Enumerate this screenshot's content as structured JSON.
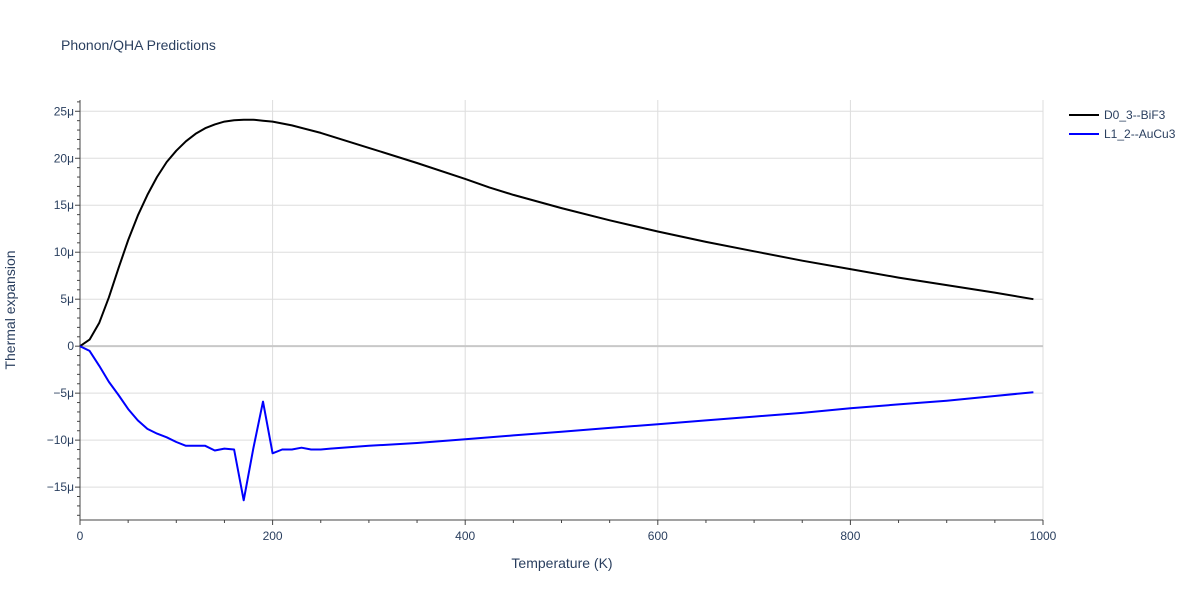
{
  "chart_data": {
    "type": "line",
    "title": "Phonon/QHA Predictions",
    "xlabel": "Temperature (K)",
    "ylabel": "Thermal expansion",
    "xlim": [
      0,
      1000
    ],
    "ylim": [
      -18.5,
      26.2
    ],
    "x_ticks": [
      0,
      200,
      400,
      600,
      800,
      1000
    ],
    "x_tick_labels": [
      "0",
      "200",
      "400",
      "600",
      "800",
      "1000"
    ],
    "y_ticks": [
      -15,
      -10,
      -5,
      0,
      5,
      10,
      15,
      20,
      25
    ],
    "y_tick_labels": [
      "−15μ",
      "−10μ",
      "−5μ",
      "0",
      "5μ",
      "10μ",
      "15μ",
      "20μ",
      "25μ"
    ],
    "y_unit_note": "values in μ (1e-6 /K)",
    "grid": true,
    "legend_position": "top-right",
    "series": [
      {
        "name": "D0_3--BiF3",
        "color": "#000000",
        "x": [
          0,
          10,
          20,
          30,
          40,
          50,
          60,
          70,
          80,
          90,
          100,
          110,
          120,
          130,
          140,
          150,
          160,
          170,
          180,
          190,
          200,
          220,
          250,
          300,
          350,
          400,
          425,
          450,
          500,
          550,
          600,
          650,
          700,
          750,
          800,
          850,
          900,
          950,
          990
        ],
        "values": [
          0,
          0.7,
          2.5,
          5.2,
          8.3,
          11.3,
          13.9,
          16.1,
          18.0,
          19.6,
          20.8,
          21.8,
          22.6,
          23.2,
          23.6,
          23.9,
          24.05,
          24.1,
          24.1,
          24.0,
          23.9,
          23.5,
          22.7,
          21.1,
          19.5,
          17.8,
          16.9,
          16.1,
          14.7,
          13.4,
          12.2,
          11.1,
          10.1,
          9.1,
          8.2,
          7.3,
          6.5,
          5.7,
          5.0
        ]
      },
      {
        "name": "L1_2--AuCu3",
        "color": "#0000ff",
        "x": [
          0,
          10,
          20,
          30,
          40,
          50,
          60,
          70,
          80,
          90,
          100,
          110,
          120,
          130,
          140,
          150,
          160,
          170,
          180,
          190,
          200,
          210,
          220,
          230,
          240,
          250,
          260,
          300,
          350,
          400,
          450,
          500,
          550,
          600,
          650,
          700,
          750,
          800,
          850,
          900,
          950,
          990
        ],
        "values": [
          0,
          -0.5,
          -2.1,
          -3.8,
          -5.2,
          -6.7,
          -7.9,
          -8.8,
          -9.3,
          -9.7,
          -10.2,
          -10.6,
          -10.6,
          -10.6,
          -11.1,
          -10.9,
          -11.0,
          -16.4,
          -10.9,
          -5.9,
          -11.4,
          -11.0,
          -11.0,
          -10.8,
          -11.0,
          -11.0,
          -10.9,
          -10.6,
          -10.3,
          -9.9,
          -9.5,
          -9.1,
          -8.7,
          -8.3,
          -7.9,
          -7.5,
          -7.1,
          -6.6,
          -6.2,
          -5.8,
          -5.3,
          -4.9
        ]
      }
    ]
  }
}
